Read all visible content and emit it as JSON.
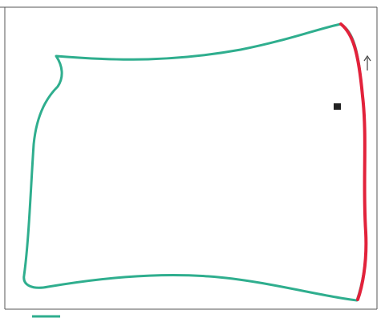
{
  "colors": {
    "frame": "#333333",
    "boundary": "#2fae8e",
    "boundary_segment": "#e2223b",
    "marker": "#222222"
  },
  "labels": {
    "top_caption": "",
    "right_upper": "",
    "right_lower": "",
    "marker_label": ""
  }
}
